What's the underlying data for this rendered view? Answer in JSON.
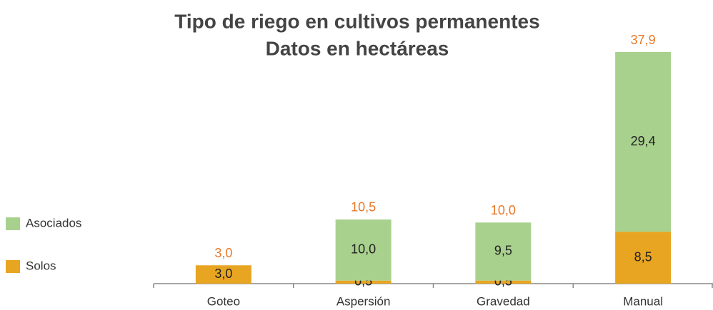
{
  "chart_data": {
    "type": "stacked_bar",
    "title": "Tipo de riego en cultivos permanentes",
    "subtitle": "Datos en hectáreas",
    "categories": [
      "Goteo",
      "Aspersión",
      "Gravedad",
      "Manual"
    ],
    "series": [
      {
        "name": "Solos",
        "color": "#e8a522",
        "values": [
          3.0,
          0.5,
          0.5,
          8.5
        ],
        "value_labels": [
          "3,0",
          "0,5",
          "0,5",
          "8,5"
        ]
      },
      {
        "name": "Asociados",
        "color": "#a9d18e",
        "values": [
          0,
          10.0,
          9.5,
          29.4
        ],
        "value_labels": [
          null,
          "10,0",
          "9,5",
          "29,4"
        ]
      }
    ],
    "totals": [
      3.0,
      10.5,
      10.0,
      37.9
    ],
    "total_labels": [
      "3,0",
      "10,5",
      "10,0",
      "37,9"
    ],
    "total_color": "#e8782a",
    "legend": "left"
  }
}
